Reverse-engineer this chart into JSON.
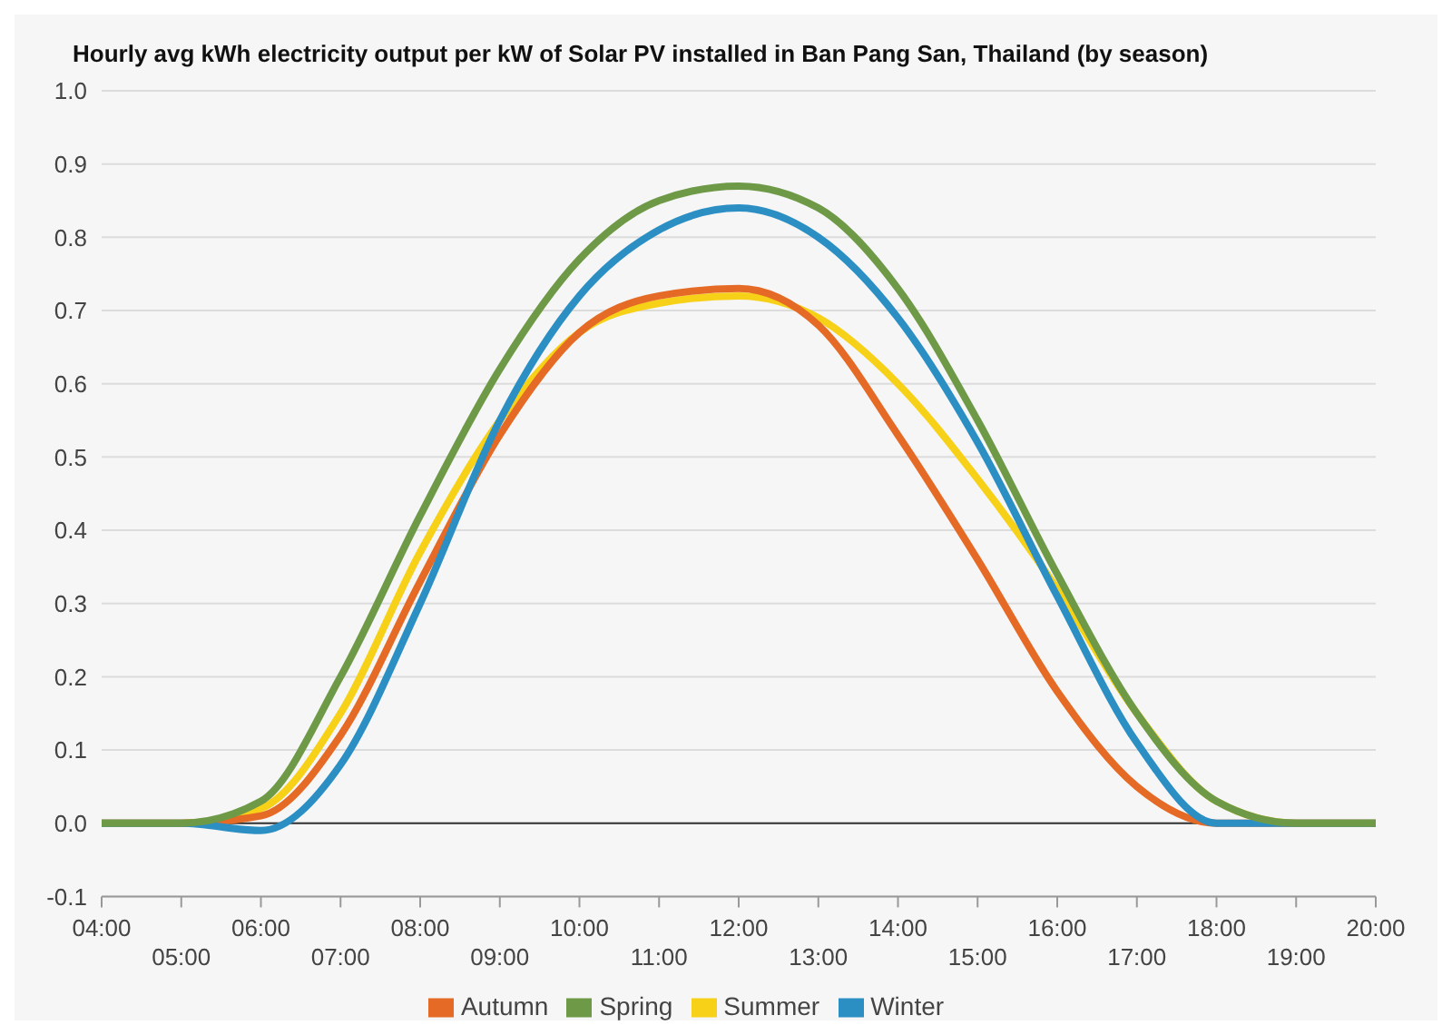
{
  "chart_data": {
    "type": "line",
    "title": "Hourly avg kWh electricity output per kW of Solar PV installed in Ban Pang San, Thailand (by season)",
    "categories": [
      "04:00",
      "05:00",
      "06:00",
      "07:00",
      "08:00",
      "09:00",
      "10:00",
      "11:00",
      "12:00",
      "13:00",
      "14:00",
      "15:00",
      "16:00",
      "17:00",
      "18:00",
      "19:00",
      "20:00"
    ],
    "series": [
      {
        "name": "Summer",
        "color": "#f7d117",
        "values": [
          0,
          0,
          0.02,
          0.15,
          0.37,
          0.55,
          0.67,
          0.71,
          0.72,
          0.69,
          0.6,
          0.47,
          0.32,
          0.15,
          0.03,
          0,
          0
        ]
      },
      {
        "name": "Autumn",
        "color": "#e56a25",
        "values": [
          0,
          0,
          0.01,
          0.12,
          0.33,
          0.53,
          0.67,
          0.72,
          0.73,
          0.68,
          0.53,
          0.36,
          0.18,
          0.05,
          0,
          0,
          0
        ]
      },
      {
        "name": "Winter",
        "color": "#2b8fc4",
        "values": [
          0,
          0,
          -0.01,
          0.08,
          0.3,
          0.55,
          0.72,
          0.81,
          0.84,
          0.8,
          0.69,
          0.52,
          0.31,
          0.11,
          0,
          0,
          0
        ]
      },
      {
        "name": "Spring",
        "color": "#6e9a48",
        "values": [
          0,
          0,
          0.03,
          0.2,
          0.42,
          0.62,
          0.77,
          0.85,
          0.87,
          0.84,
          0.73,
          0.55,
          0.34,
          0.15,
          0.03,
          0,
          0
        ]
      }
    ],
    "ylim": [
      -0.1,
      1
    ],
    "yticks": [
      -0.1,
      {
        "value": 0,
        "label": "0.0"
      },
      0.1,
      0.2,
      0.3,
      0.4,
      0.5,
      0.6,
      0.7,
      0.8,
      0.9,
      {
        "value": 1,
        "label": "1.0"
      }
    ],
    "grid": "y",
    "legend": "bottom",
    "marker": "none",
    "line_style": "solid"
  }
}
